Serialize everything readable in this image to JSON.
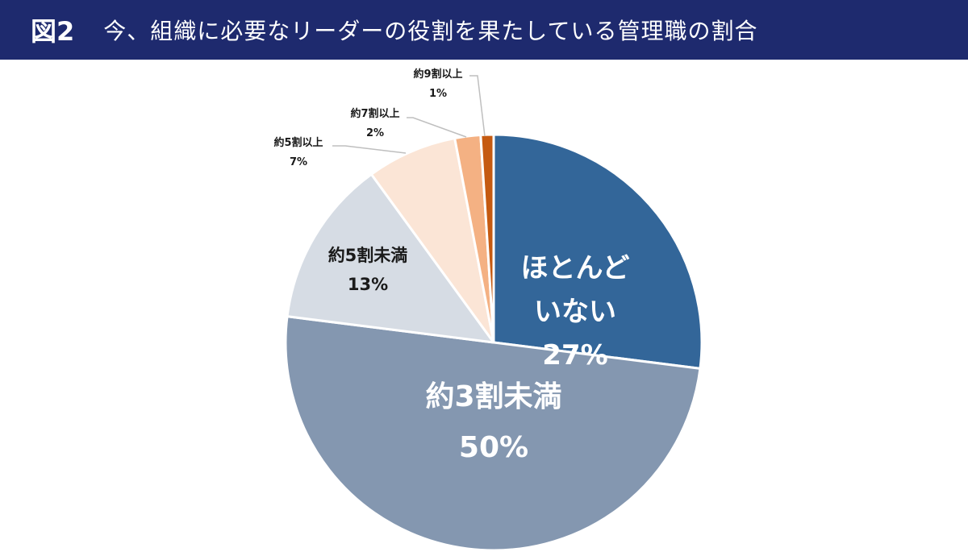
{
  "header": {
    "figure_label": "図2",
    "title": "今、組織に必要なリーダーの役割を果たしている管理職の割合"
  },
  "colors": {
    "header_bg": "#1e2a6e",
    "slice_border": "#ffffff",
    "leader_line": "#bfbfbf"
  },
  "chart_data": {
    "type": "pie",
    "start": "12 o'clock, clockwise",
    "slices": [
      {
        "label": "ほとんど\nいない",
        "percent_label": "27%",
        "value": 27,
        "color": "#336699"
      },
      {
        "label": "約3割未満",
        "percent_label": "50%",
        "value": 50,
        "color": "#8497b0"
      },
      {
        "label": "約5割未満",
        "percent_label": "13%",
        "value": 13,
        "color": "#d6dce4"
      },
      {
        "label": "約5割以上",
        "percent_label": "7%",
        "value": 7,
        "color": "#fbe5d6"
      },
      {
        "label": "約7割以上",
        "percent_label": "2%",
        "value": 2,
        "color": "#f4b183"
      },
      {
        "label": "約9割以上",
        "percent_label": "1%",
        "value": 1,
        "color": "#c55a11"
      }
    ]
  }
}
